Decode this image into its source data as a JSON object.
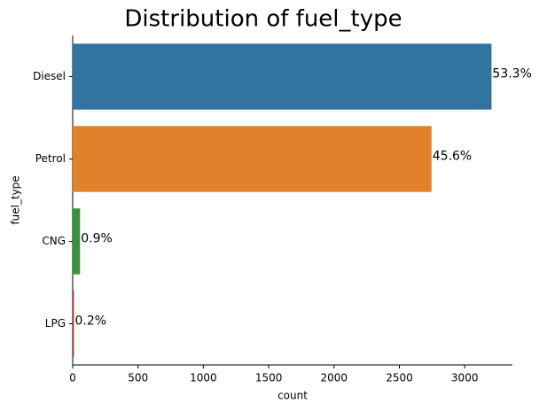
{
  "chart_data": {
    "type": "barh",
    "title": "Distribution of fuel_type",
    "x_label": "count",
    "y_label": "fuel_type",
    "categories": [
      "Diesel",
      "Petrol",
      "CNG",
      "LPG"
    ],
    "values": [
      3205,
      2746,
      56,
      10
    ],
    "colors": [
      "#3274a1",
      "#e1812c",
      "#3a923a",
      "#c03d3e"
    ],
    "percent_labels": [
      {
        "value": 53.3,
        "label": "53.3%"
      },
      {
        "value": 45.6,
        "label": "45.6%"
      },
      {
        "value": 0.9,
        "label": "0.9%"
      },
      {
        "value": 0.2,
        "label": "0.2%"
      }
    ],
    "xlim": [
      0,
      3365
    ],
    "xticks": [
      0,
      500,
      1000,
      1500,
      2000,
      2500,
      3000
    ],
    "grid": false
  }
}
